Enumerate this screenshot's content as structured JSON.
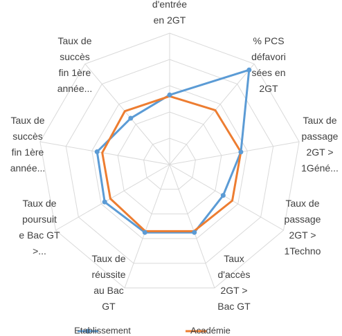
{
  "chart_data": {
    "type": "radar",
    "axes": [
      [
        "d'entrée",
        "en 2GT"
      ],
      [
        "% PCS",
        "défavori",
        "sées en",
        "2GT"
      ],
      [
        "Taux de",
        "passage",
        "2GT >",
        "1Géné..."
      ],
      [
        "Taux de",
        "passage",
        "2GT >",
        "1Techno"
      ],
      [
        "Taux",
        "d'accès",
        "2GT >",
        "Bac GT"
      ],
      [
        "Taux de",
        "réussite",
        "au Bac",
        "GT"
      ],
      [
        "Taux de",
        "poursuit",
        "e Bac GT",
        ">..."
      ],
      [
        "Taux de",
        "succès",
        "fin 1ère",
        "année..."
      ],
      [
        "Taux de",
        "succès",
        "fin 1ère",
        "année..."
      ]
    ],
    "rlim": [
      0,
      100
    ],
    "rticks": [
      20,
      40,
      60,
      80,
      100
    ],
    "grid": true,
    "legend": "bottom",
    "series": [
      {
        "name": "Etablissement",
        "color": "#5b9bd5",
        "marker": true,
        "values": [
          53,
          94,
          55,
          47,
          55,
          55,
          57,
          56,
          46
        ]
      },
      {
        "name": "Académie",
        "color": "#ed7d31",
        "marker": false,
        "values": [
          52,
          54,
          55,
          55,
          54,
          54,
          52,
          52,
          53
        ]
      }
    ]
  }
}
